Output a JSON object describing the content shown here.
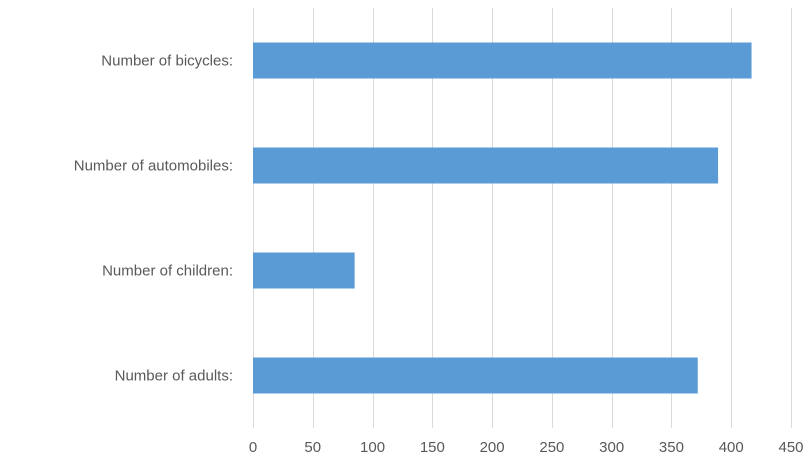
{
  "chart_data": {
    "type": "bar",
    "orientation": "horizontal",
    "categories": [
      "Number of bicycles:",
      "Number of automobiles:",
      "Number of children:",
      "Number of adults:"
    ],
    "values": [
      417,
      389,
      85,
      372
    ],
    "xlim": [
      0,
      450
    ],
    "xticks": [
      0,
      50,
      100,
      150,
      200,
      250,
      300,
      350,
      400,
      450
    ],
    "grid": "vertical",
    "bar_color": "#5B9BD5",
    "grid_color": "#D9D9D9",
    "text_color": "#595959"
  }
}
